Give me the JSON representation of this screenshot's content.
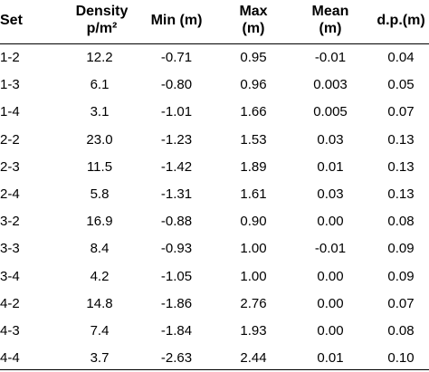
{
  "headers": {
    "set": "Set",
    "density_line1": "Density",
    "density_line2": "p/m²",
    "min": "Min (m)",
    "max_line1": "Max",
    "max_line2": "(m)",
    "mean_line1": "Mean",
    "mean_line2": "(m)",
    "dp": "d.p.(m)"
  },
  "rows": [
    {
      "set": "1-2",
      "density": "12.2",
      "min": "-0.71",
      "max": "0.95",
      "mean": "-0.01",
      "dp": "0.04"
    },
    {
      "set": "1-3",
      "density": "6.1",
      "min": "-0.80",
      "max": "0.96",
      "mean": "0.003",
      "dp": "0.05"
    },
    {
      "set": "1-4",
      "density": "3.1",
      "min": "-1.01",
      "max": "1.66",
      "mean": "0.005",
      "dp": "0.07"
    },
    {
      "set": "2-2",
      "density": "23.0",
      "min": "-1.23",
      "max": "1.53",
      "mean": "0.03",
      "dp": "0.13"
    },
    {
      "set": "2-3",
      "density": "11.5",
      "min": "-1.42",
      "max": "1.89",
      "mean": "0.01",
      "dp": "0.13"
    },
    {
      "set": "2-4",
      "density": "5.8",
      "min": "-1.31",
      "max": "1.61",
      "mean": "0.03",
      "dp": "0.13"
    },
    {
      "set": "3-2",
      "density": "16.9",
      "min": "-0.88",
      "max": "0.90",
      "mean": "0.00",
      "dp": "0.08"
    },
    {
      "set": "3-3",
      "density": "8.4",
      "min": "-0.93",
      "max": "1.00",
      "mean": "-0.01",
      "dp": "0.09"
    },
    {
      "set": "3-4",
      "density": "4.2",
      "min": "-1.05",
      "max": "1.00",
      "mean": "0.00",
      "dp": "0.09"
    },
    {
      "set": "4-2",
      "density": "14.8",
      "min": "-1.86",
      "max": "2.76",
      "mean": "0.00",
      "dp": "0.07"
    },
    {
      "set": "4-3",
      "density": "7.4",
      "min": "-1.84",
      "max": "1.93",
      "mean": "0.00",
      "dp": "0.08"
    },
    {
      "set": "4-4",
      "density": "3.7",
      "min": "-2.63",
      "max": "2.44",
      "mean": "0.01",
      "dp": "0.10"
    }
  ]
}
